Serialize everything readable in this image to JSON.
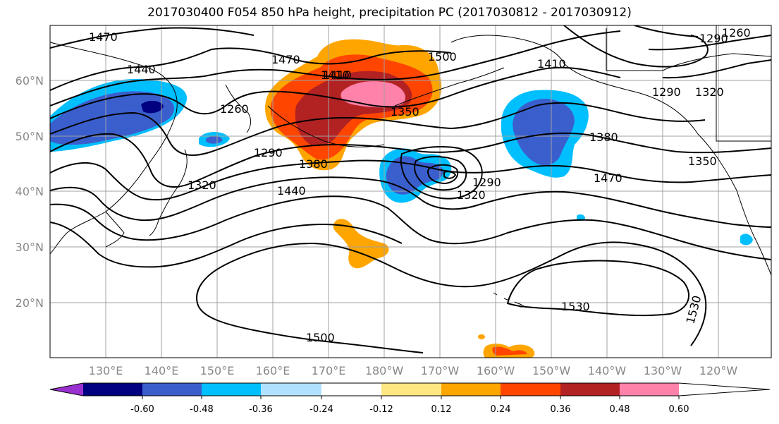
{
  "title": "2017030400 F054 850 hPa height, precipitation PC (2017030812 - 2017030912)",
  "lat_labels": [
    "60°N",
    "50°N",
    "40°N",
    "30°N",
    "20°N"
  ],
  "lon_labels": [
    "130°E",
    "140°E",
    "150°E",
    "160°E",
    "170°E",
    "180°W",
    "170°W",
    "160°W",
    "150°W",
    "140°W",
    "130°W",
    "120°W"
  ],
  "contour_labels": [
    "1470",
    "1440",
    "1470",
    "1410",
    "1500",
    "1410",
    "1260",
    "1290",
    "1320",
    "1290",
    "1350",
    "1380",
    "1260",
    "1290",
    "1410",
    "1440",
    "1380",
    "1350",
    "1320",
    "1290",
    "1320",
    "1470",
    "1500",
    "1530",
    "1530"
  ],
  "colorbar": {
    "ticks": [
      "-0.60",
      "-0.48",
      "-0.36",
      "-0.24",
      "-0.12",
      "0.12",
      "0.24",
      "0.36",
      "0.48",
      "0.60"
    ],
    "colors": [
      "#9b30d0",
      "#000080",
      "#3a5fcd",
      "#00bfff",
      "#b0e2ff",
      "#ffffff",
      "#ffe680",
      "#ffa500",
      "#ff4500",
      "#b22222",
      "#ff82ab"
    ]
  }
}
